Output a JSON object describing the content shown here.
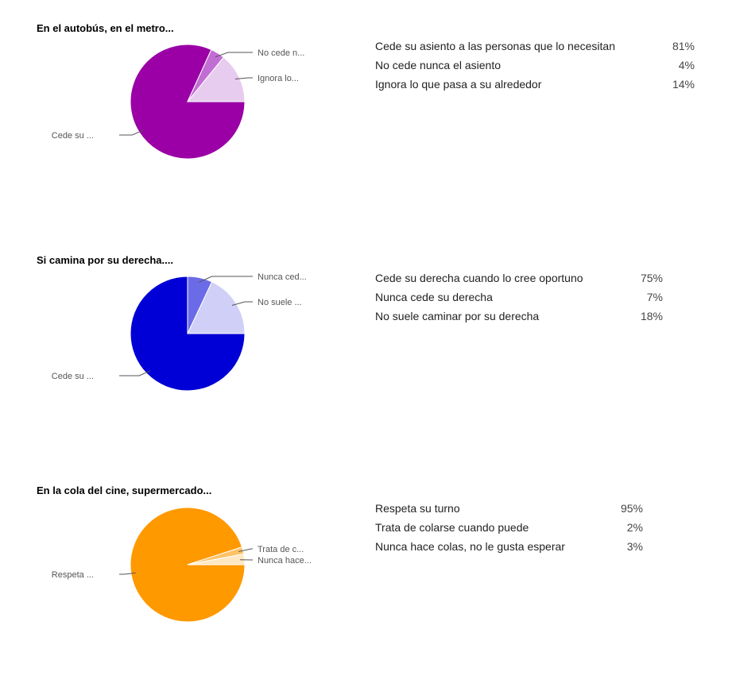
{
  "chart_data": [
    {
      "type": "pie",
      "title": "En el autobús, en el metro...",
      "slice_labels": [
        "No cede n...",
        "Ignora lo...",
        "Cede su ..."
      ],
      "legend": [
        {
          "label": "Cede su asiento a las personas que lo necesitan",
          "percent": "81%"
        },
        {
          "label": "No cede nunca el asiento",
          "percent": "4%"
        },
        {
          "label": "Ignora lo que pasa a su alrededor",
          "percent": "14%"
        }
      ],
      "slices": [
        {
          "label": "Cede su asiento a las personas que lo necesitan",
          "value": 81,
          "color": "#9a00a6"
        },
        {
          "label": "No cede nunca el asiento",
          "value": 4,
          "color": "#c26dd4"
        },
        {
          "label": "Ignora lo que pasa a su alrededor",
          "value": 14,
          "color": "#e8ccef"
        }
      ]
    },
    {
      "type": "pie",
      "title": "Si camina por su derecha....",
      "slice_labels": [
        "Nunca ced...",
        "No suele ...",
        "Cede su ..."
      ],
      "legend": [
        {
          "label": "Cede su derecha cuando lo cree oportuno",
          "percent": "75%"
        },
        {
          "label": "Nunca cede su derecha",
          "percent": "7%"
        },
        {
          "label": "No suele caminar por su derecha",
          "percent": "18%"
        }
      ],
      "slices": [
        {
          "label": "Cede su derecha cuando lo cree oportuno",
          "value": 75,
          "color": "#0000d6"
        },
        {
          "label": "Nunca cede su derecha",
          "value": 7,
          "color": "#6b6be8"
        },
        {
          "label": "No suele caminar por su derecha",
          "value": 18,
          "color": "#cfcff7"
        }
      ]
    },
    {
      "type": "pie",
      "title": "En la cola del cine, supermercado...",
      "slice_labels": [
        "Trata de c...",
        "Nunca hace...",
        "Respeta ..."
      ],
      "legend": [
        {
          "label": "Respeta su turno",
          "percent": "95%"
        },
        {
          "label": "Trata de colarse cuando puede",
          "percent": "2%"
        },
        {
          "label": "Nunca hace colas, no le gusta esperar",
          "percent": "3%"
        }
      ],
      "slices": [
        {
          "label": "Respeta su turno",
          "value": 95,
          "color": "#ff9900"
        },
        {
          "label": "Trata de colarse cuando puede",
          "value": 2,
          "color": "#ffc266"
        },
        {
          "label": "Nunca hace colas, no le gusta esperar",
          "value": 3,
          "color": "#ffe8c2"
        }
      ]
    }
  ]
}
